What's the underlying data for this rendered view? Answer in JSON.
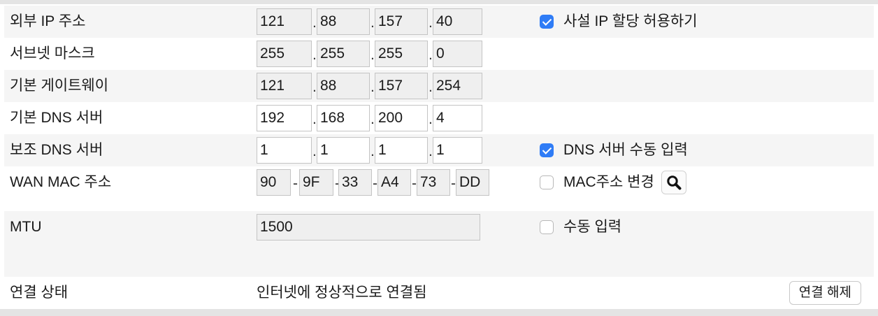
{
  "rows": {
    "wan_ip": {
      "label": "외부 IP 주소",
      "octets": [
        "121",
        "88",
        "157",
        "40"
      ],
      "separator": ".",
      "option": {
        "label": "사설 IP 할당 허용하기",
        "checked": true
      }
    },
    "subnet": {
      "label": "서브넷 마스크",
      "octets": [
        "255",
        "255",
        "255",
        "0"
      ],
      "separator": "."
    },
    "gateway": {
      "label": "기본 게이트웨이",
      "octets": [
        "121",
        "88",
        "157",
        "254"
      ],
      "separator": "."
    },
    "dns1": {
      "label": "기본 DNS 서버",
      "octets": [
        "192",
        "168",
        "200",
        "4"
      ],
      "separator": "."
    },
    "dns2": {
      "label": "보조 DNS 서버",
      "octets": [
        "1",
        "1",
        "1",
        "1"
      ],
      "separator": ".",
      "option": {
        "label": "DNS 서버 수동 입력",
        "checked": true
      }
    },
    "mac": {
      "label": "WAN MAC 주소",
      "parts": [
        "90",
        "9F",
        "33",
        "A4",
        "73",
        "DD"
      ],
      "separator": "-",
      "option": {
        "label": "MAC주소 변경",
        "checked": false,
        "button_icon": "search-icon"
      }
    },
    "mtu": {
      "label": "MTU",
      "value": "1500",
      "option": {
        "label": "수동 입력",
        "checked": false
      }
    }
  },
  "status": {
    "label": "연결 상태",
    "text": "인터넷에 정상적으로 연결됨",
    "disconnect_label": "연결 해제"
  },
  "colors": {
    "accent": "#2f7cf6",
    "row_alt": "#f5f5f5",
    "readonly_field": "#efefef"
  }
}
